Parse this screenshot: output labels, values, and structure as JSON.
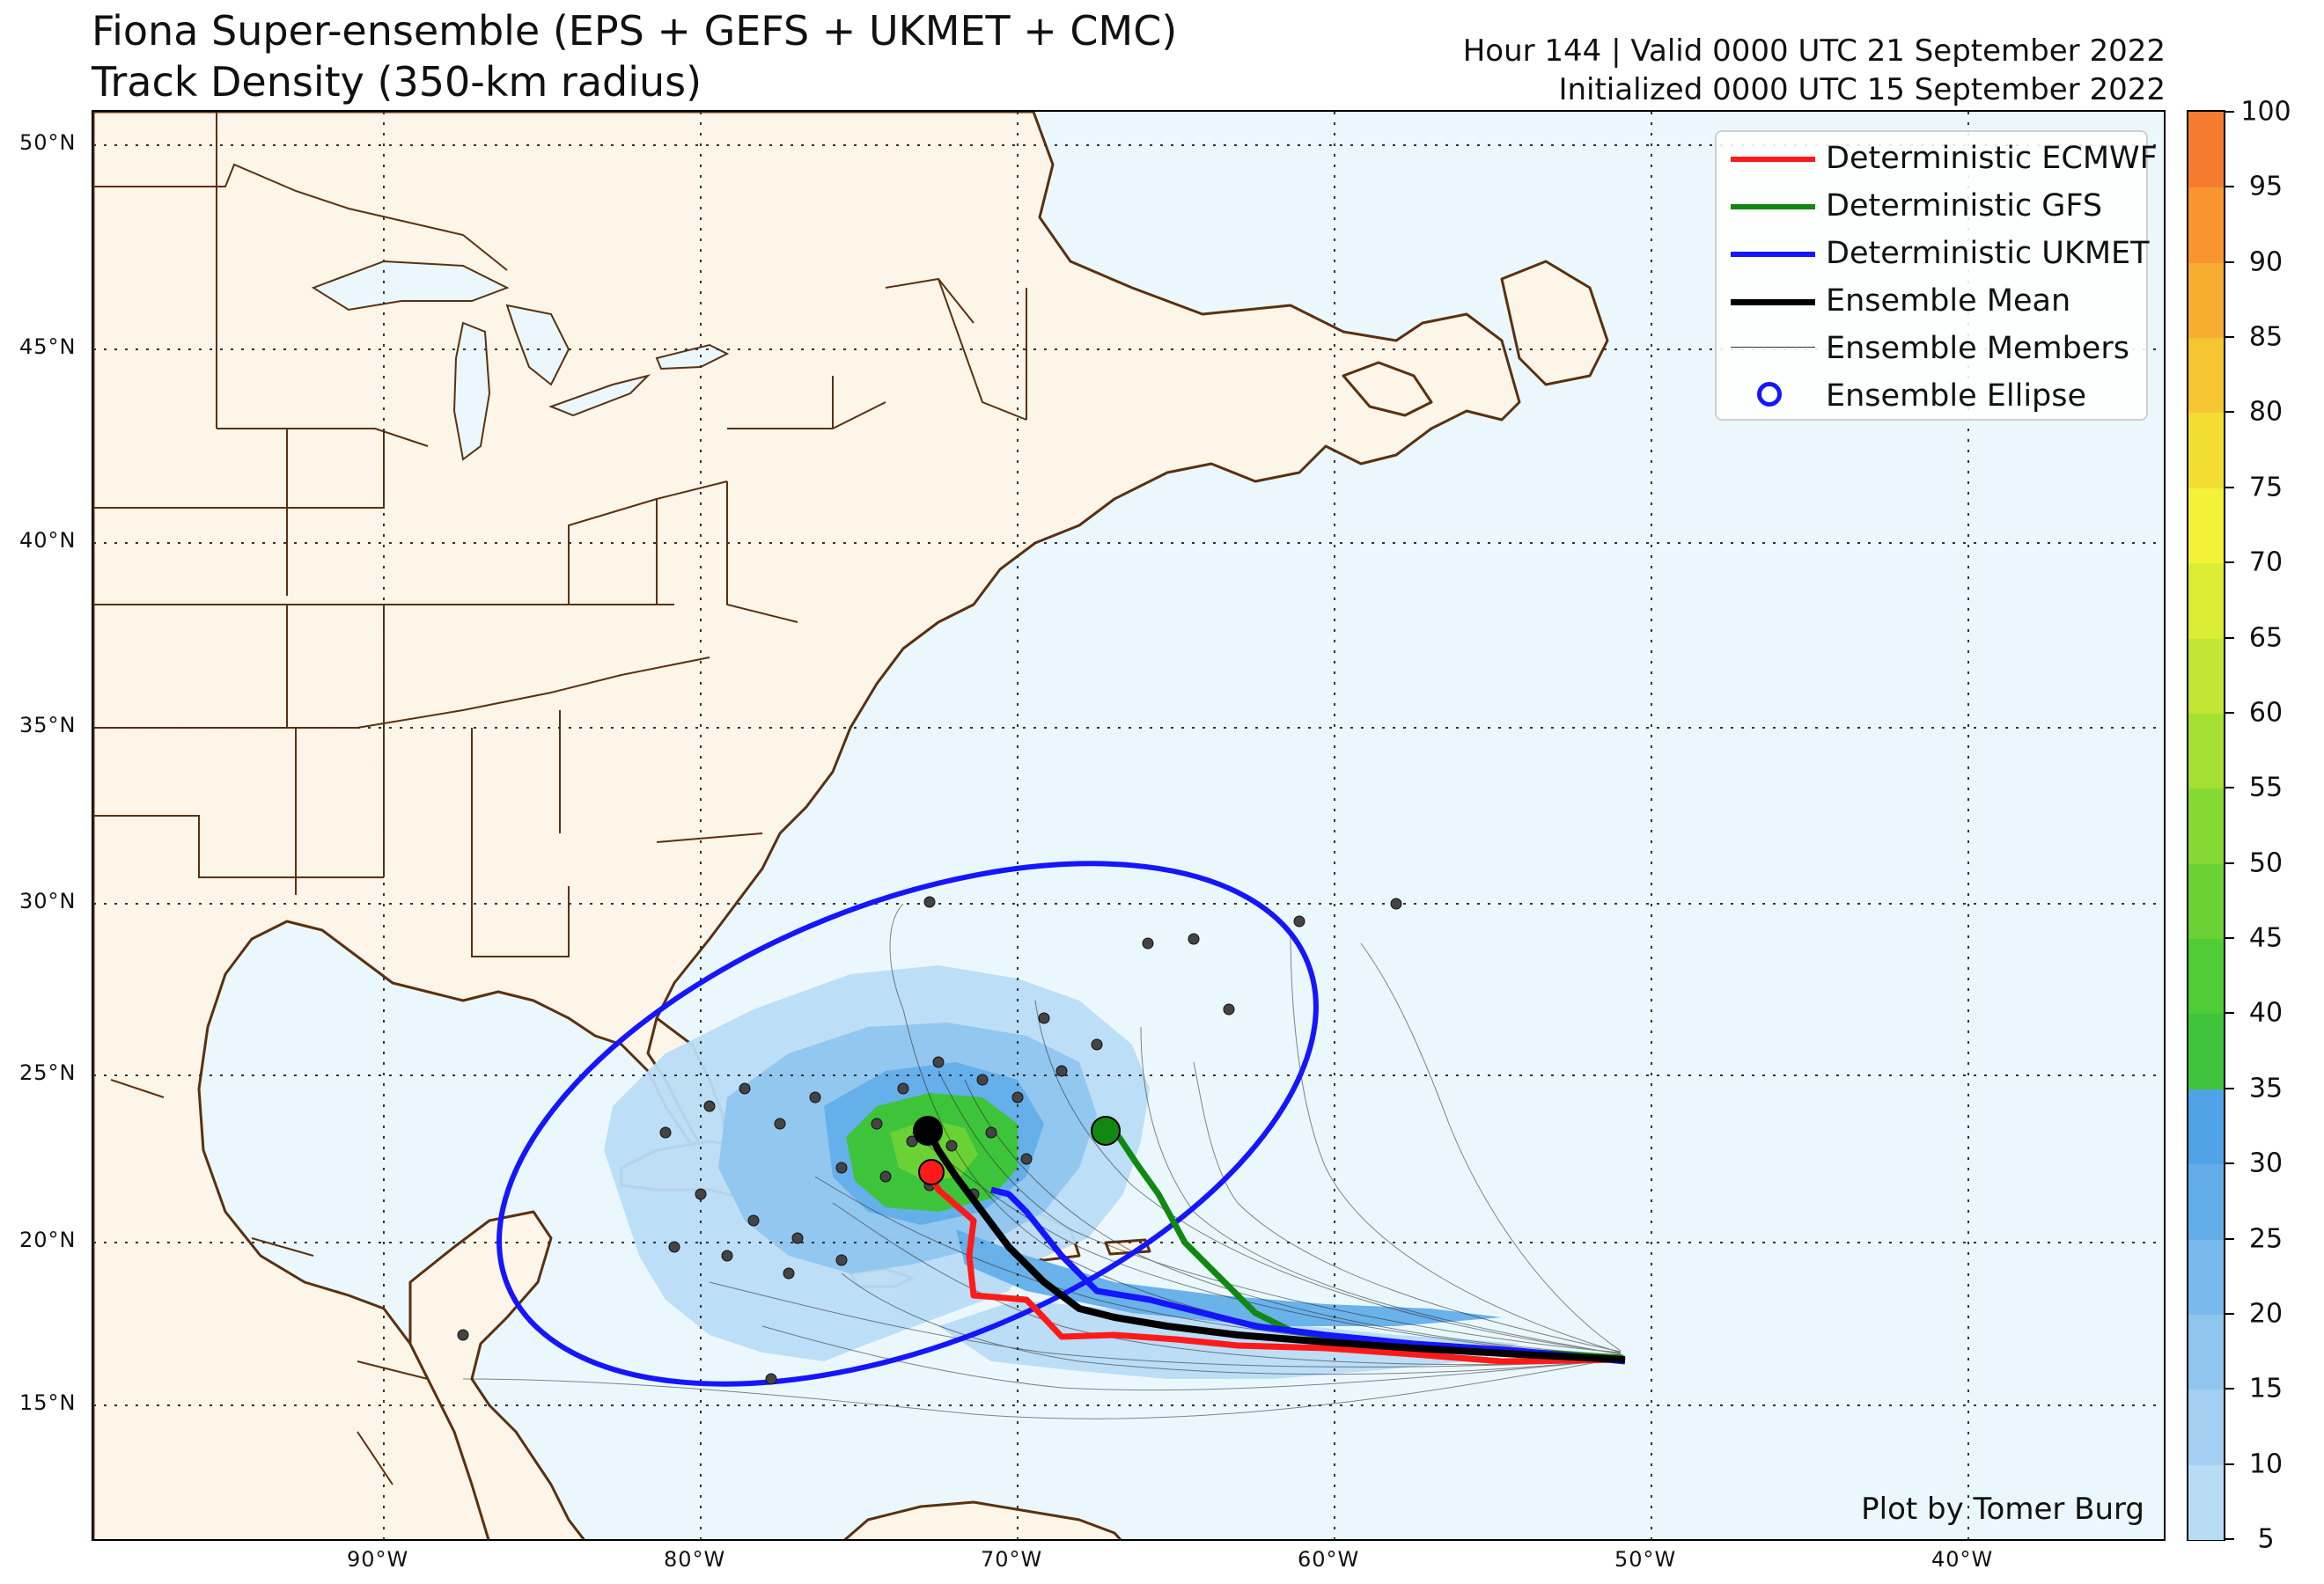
{
  "title": {
    "line1": "Fiona Super-ensemble (EPS + GEFS + UKMET + CMC)",
    "line2": "Track Density (350-km radius)"
  },
  "info": {
    "line1": "Hour 144 | Valid 0000 UTC 21 September 2022",
    "line2": "Initialized 0000 UTC 15 September 2022"
  },
  "legend": [
    {
      "label": "Deterministic ECMWF",
      "color": "#ff1a1a",
      "style": "thick-line"
    },
    {
      "label": "Deterministic GFS",
      "color": "#118811",
      "style": "thick-line"
    },
    {
      "label": "Deterministic UKMET",
      "color": "#1515ff",
      "style": "thick-line"
    },
    {
      "label": "Ensemble Mean",
      "color": "#000000",
      "style": "thick-line"
    },
    {
      "label": "Ensemble Members",
      "color": "#333333",
      "style": "thin-line"
    },
    {
      "label": "Ensemble Ellipse",
      "color": "#1515ff",
      "style": "circle"
    }
  ],
  "credit": "Plot by Tomer Burg",
  "lat_labels": [
    "50°N",
    "45°N",
    "40°N",
    "35°N",
    "30°N",
    "25°N",
    "20°N",
    "15°N"
  ],
  "lon_labels": [
    "90°W",
    "80°W",
    "70°W",
    "60°W",
    "50°W",
    "40°W"
  ],
  "colorbar": {
    "ticks": [
      "5",
      "10",
      "15",
      "20",
      "25",
      "30",
      "35",
      "40",
      "45",
      "50",
      "55",
      "60",
      "65",
      "70",
      "75",
      "80",
      "85",
      "90",
      "95",
      "100"
    ],
    "colors": [
      "#b9dcf5",
      "#a3d0f2",
      "#8fc5ef",
      "#79b9ec",
      "#63aee9",
      "#4fa3e6",
      "#3ec43a",
      "#4fcc36",
      "#6ad234",
      "#86d933",
      "#a5e032",
      "#c2e633",
      "#dbec34",
      "#f3f236",
      "#f4dd33",
      "#f5c532",
      "#f6ad31",
      "#f89530",
      "#f57c2f",
      "#f23a2f"
    ]
  },
  "map": {
    "land_color": "#fdf5e8",
    "ocean_color": "#eaf8fd",
    "border_color": "#5a3010"
  },
  "tracks": {
    "ecmwf_color": "#ff1a1a",
    "gfs_color": "#118811",
    "ukmet_color": "#1515ff",
    "mean_color": "#000000"
  }
}
